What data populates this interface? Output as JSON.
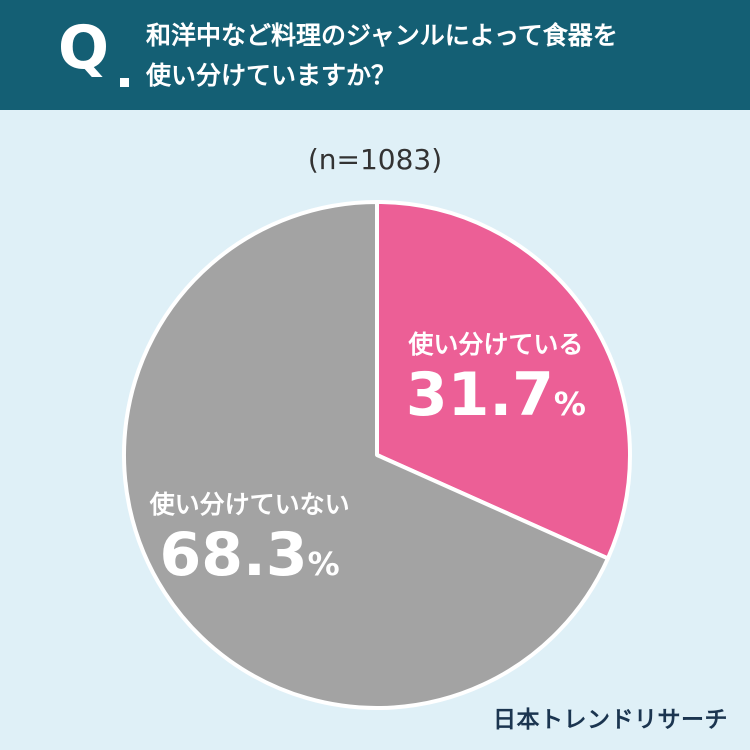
{
  "header": {
    "q_mark": "Q",
    "question": "和洋中など料理のジャンルによって食器を\n使い分けていますか？",
    "background_color": "#145f74"
  },
  "sample_size": "(n=1083)",
  "chart_data": {
    "type": "pie",
    "start_angle_deg": 0,
    "direction": "clockwise",
    "slices": [
      {
        "label": "使い分けている",
        "value": 31.7,
        "value_text": "31.7",
        "unit": "%",
        "color": "#ec5f96"
      },
      {
        "label": "使い分けていない",
        "value": 68.3,
        "value_text": "68.3",
        "unit": "%",
        "color": "#a3a3a3"
      }
    ],
    "separator_color": "#ffffff"
  },
  "brand": "日本トレンドリサーチ",
  "colors": {
    "background": "#dff0f7",
    "text_dark": "#333333",
    "brand_text": "#1b3550"
  }
}
